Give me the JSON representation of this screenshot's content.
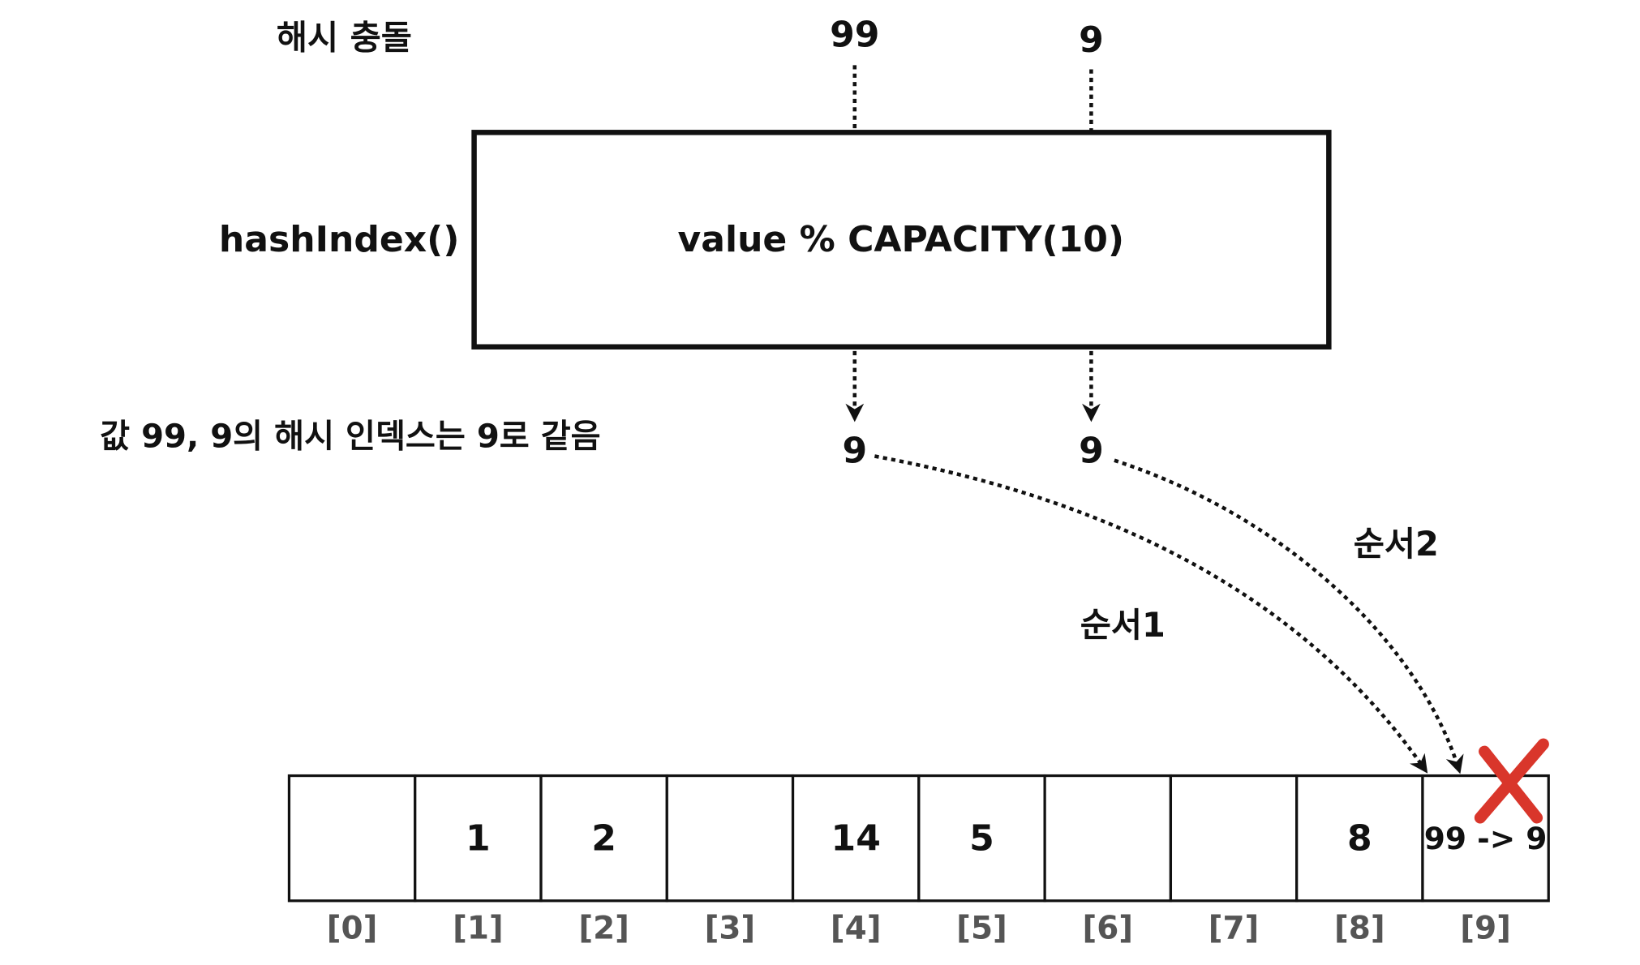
{
  "title": "해시 충돌",
  "inputs": [
    "99",
    "9"
  ],
  "function_label": "hashIndex()",
  "function_text": "value % CAPACITY(10)",
  "note": "값 99, 9의 해시 인덱스는 9로 같음",
  "outputs": [
    "9",
    "9"
  ],
  "steps": [
    "순서1",
    "순서2"
  ],
  "array": {
    "cells": [
      null,
      "1",
      "2",
      null,
      "14",
      "5",
      null,
      null,
      "8",
      "99 -> 9"
    ],
    "indices": [
      "[0]",
      "[1]",
      "[2]",
      "[3]",
      "[4]",
      "[5]",
      "[6]",
      "[7]",
      "[8]",
      "[9]"
    ]
  }
}
